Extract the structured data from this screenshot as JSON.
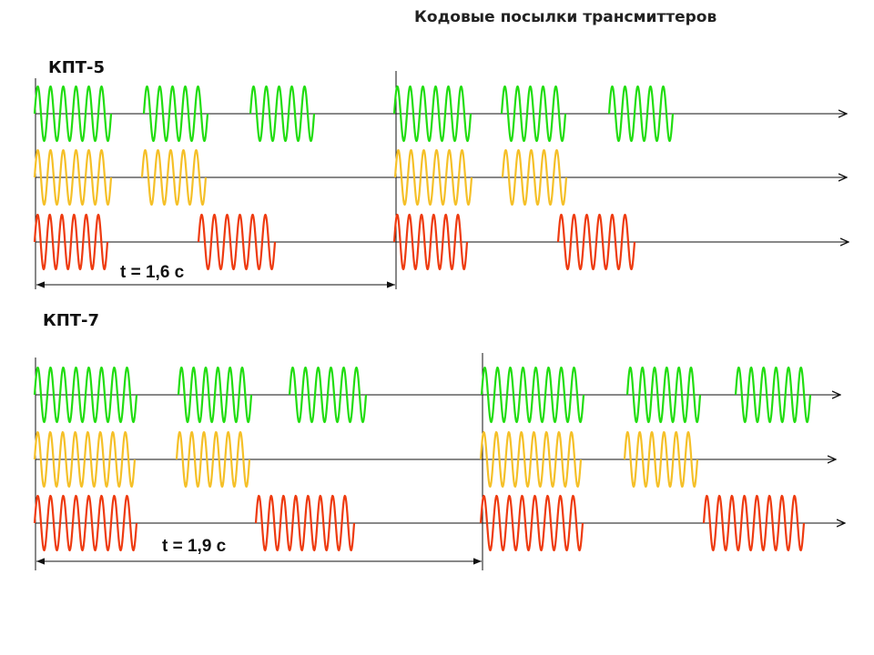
{
  "title": "Кодовые посылки трансмиттеров",
  "colors": {
    "green": "#22dd11",
    "yellow": "#f5c028",
    "red": "#ee3b10",
    "axis": "#111111"
  },
  "sections": [
    {
      "id": "kpt5",
      "label": "КПТ-5",
      "period_text": "t = 1,6 с",
      "channels": [
        {
          "color": "green",
          "bursts": [
            {
              "cycles": 6
            },
            {
              "cycles": 5
            },
            {
              "cycles": 5
            },
            {
              "cycles": 6
            },
            {
              "cycles": 5
            },
            {
              "cycles": 5
            }
          ]
        },
        {
          "color": "yellow",
          "bursts": [
            {
              "cycles": 6
            },
            {
              "cycles": 5
            },
            {
              "cycles": 6
            },
            {
              "cycles": 5
            }
          ]
        },
        {
          "color": "red",
          "bursts": [
            {
              "cycles": 6
            },
            {
              "cycles": 6
            },
            {
              "cycles": 6
            },
            {
              "cycles": 6
            }
          ]
        }
      ]
    },
    {
      "id": "kpt7",
      "label": "КПТ-7",
      "period_text": "t = 1,9 с",
      "channels": [
        {
          "color": "green",
          "bursts": [
            {
              "cycles": 8
            },
            {
              "cycles": 6
            },
            {
              "cycles": 6
            },
            {
              "cycles": 8
            },
            {
              "cycles": 6
            },
            {
              "cycles": 6
            }
          ]
        },
        {
          "color": "yellow",
          "bursts": [
            {
              "cycles": 8
            },
            {
              "cycles": 6
            },
            {
              "cycles": 8
            },
            {
              "cycles": 6
            }
          ]
        },
        {
          "color": "red",
          "bursts": [
            {
              "cycles": 8
            },
            {
              "cycles": 8
            },
            {
              "cycles": 8
            },
            {
              "cycles": 8
            }
          ]
        }
      ]
    }
  ]
}
